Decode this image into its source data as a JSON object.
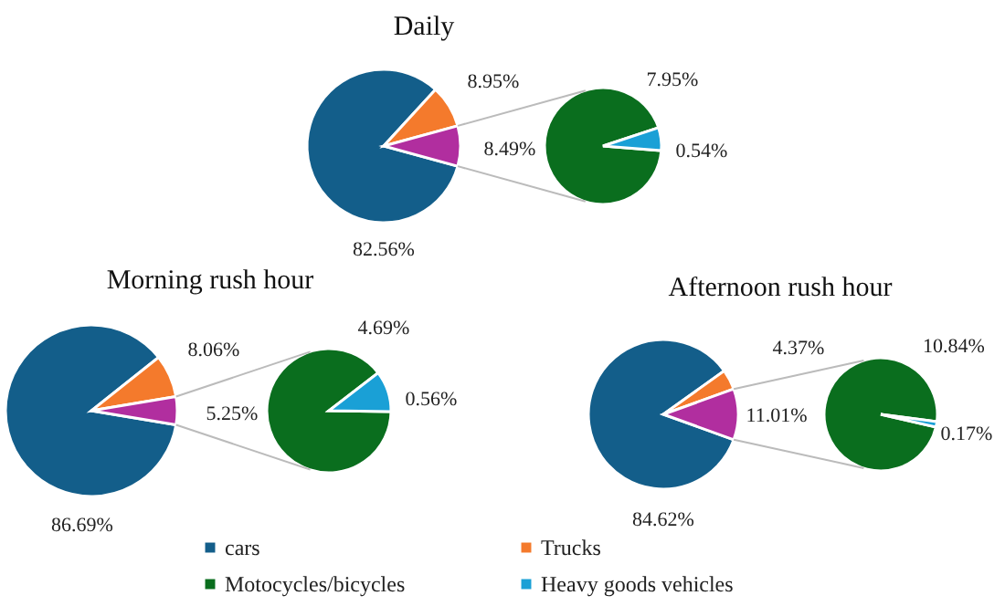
{
  "chart_data": [
    {
      "type": "pie",
      "title": "Daily",
      "categories": [
        "cars",
        "Trucks",
        null
      ],
      "values": [
        82.56,
        8.95,
        8.49
      ],
      "colors": [
        "#135e8a",
        "#f47a2c",
        "#b12e9f"
      ],
      "value_labels": [
        "82.56%",
        "8.95%",
        "8.49%"
      ],
      "legend": "bottom"
    },
    {
      "type": "pie",
      "categories": [
        "Motocycles/bicycles",
        "Heavy goods vehicles"
      ],
      "values": [
        7.95,
        0.54
      ],
      "colors": [
        "#0a6e1e",
        "#1aa0d6"
      ],
      "value_labels": [
        "7.95%",
        "0.54%"
      ],
      "legend": "bottom"
    },
    {
      "type": "pie",
      "title": "Morning rush hour",
      "categories": [
        null,
        null,
        null
      ],
      "values": [
        86.69,
        8.06,
        5.25
      ],
      "colors": [
        "#135e8a",
        "#f47a2c",
        "#b12e9f"
      ],
      "value_labels": [
        "86.69%",
        "8.06%",
        "5.25%"
      ]
    },
    {
      "type": "pie",
      "categories": [
        null,
        null
      ],
      "values": [
        4.69,
        0.56
      ],
      "colors": [
        "#0a6e1e",
        "#1aa0d6"
      ],
      "value_labels": [
        "4.69%",
        "0.56%"
      ]
    },
    {
      "type": "pie",
      "title": "Afternoon rush hour",
      "categories": [
        null,
        null,
        null
      ],
      "values": [
        84.62,
        4.37,
        11.01
      ],
      "colors": [
        "#135e8a",
        "#f47a2c",
        "#b12e9f"
      ],
      "value_labels": [
        "84.62%",
        "4.37%",
        "11.01%"
      ]
    },
    {
      "type": "pie",
      "categories": [
        null,
        null
      ],
      "values": [
        10.84,
        0.17
      ],
      "colors": [
        "#0a6e1e",
        "#1aa0d6"
      ],
      "value_labels": [
        "10.84%",
        "0.17%"
      ]
    }
  ]
}
